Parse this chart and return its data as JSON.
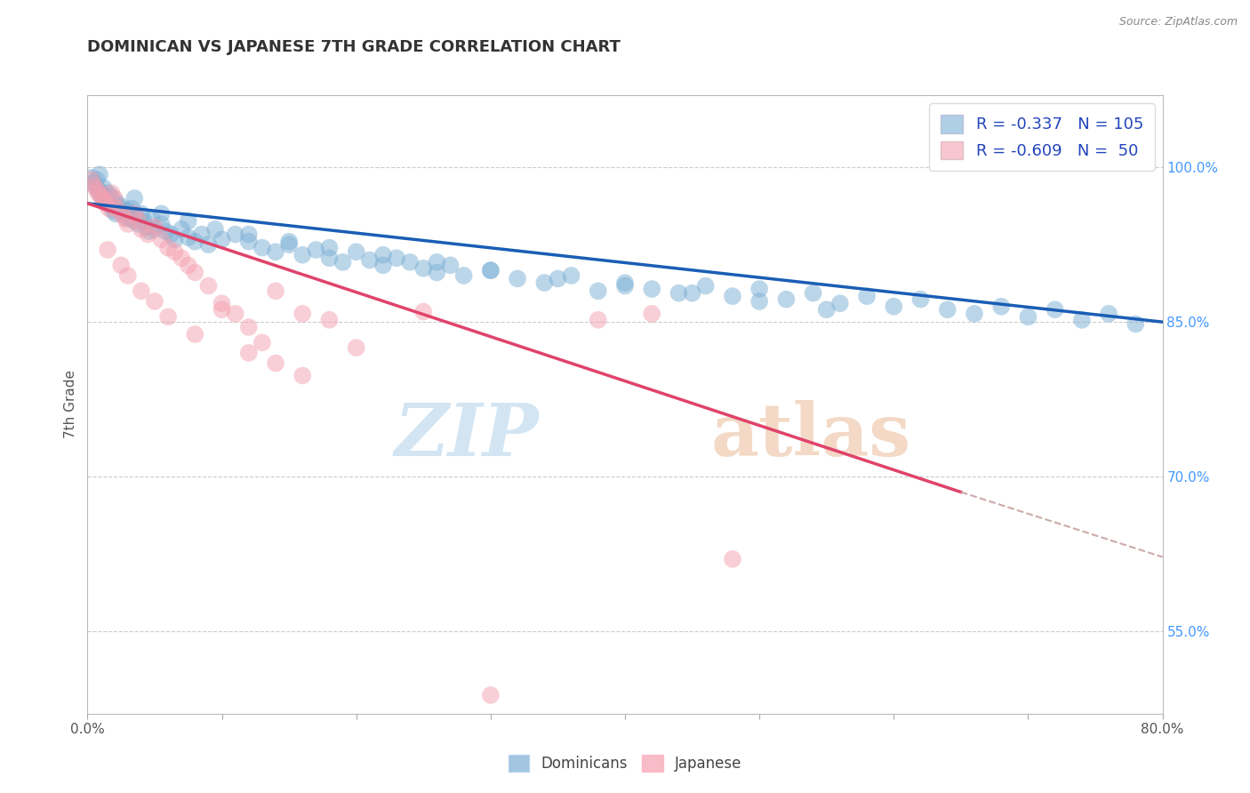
{
  "title": "DOMINICAN VS JAPANESE 7TH GRADE CORRELATION CHART",
  "source_text": "Source: ZipAtlas.com",
  "ylabel": "7th Grade",
  "xlim": [
    0.0,
    0.8
  ],
  "ylim": [
    0.47,
    1.07
  ],
  "xticks": [
    0.0,
    0.1,
    0.2,
    0.3,
    0.4,
    0.5,
    0.6,
    0.7,
    0.8
  ],
  "yticks_right": [
    0.55,
    0.7,
    0.85,
    1.0
  ],
  "ytick_right_labels": [
    "55.0%",
    "70.0%",
    "85.0%",
    "100.0%"
  ],
  "blue_color": "#7bafd4",
  "pink_color": "#f4a0b0",
  "blue_line_color": "#1a5db5",
  "pink_line_color": "#e0436a",
  "grid_color": "#cccccc",
  "blue_line_x": [
    0.0,
    0.8
  ],
  "blue_line_y": [
    0.965,
    0.85
  ],
  "pink_line_x": [
    0.0,
    0.65
  ],
  "pink_line_y": [
    0.965,
    0.685
  ],
  "dashed_line_x": [
    0.65,
    0.8
  ],
  "dashed_line_y": [
    0.685,
    0.622
  ],
  "blue_scatter_x": [
    0.003,
    0.005,
    0.006,
    0.007,
    0.008,
    0.009,
    0.01,
    0.011,
    0.012,
    0.013,
    0.014,
    0.015,
    0.016,
    0.017,
    0.018,
    0.019,
    0.02,
    0.021,
    0.022,
    0.023,
    0.025,
    0.026,
    0.027,
    0.028,
    0.03,
    0.032,
    0.033,
    0.034,
    0.035,
    0.036,
    0.038,
    0.04,
    0.042,
    0.044,
    0.046,
    0.048,
    0.05,
    0.055,
    0.058,
    0.062,
    0.065,
    0.07,
    0.075,
    0.08,
    0.085,
    0.09,
    0.1,
    0.11,
    0.12,
    0.13,
    0.14,
    0.15,
    0.16,
    0.17,
    0.18,
    0.19,
    0.2,
    0.21,
    0.22,
    0.23,
    0.24,
    0.25,
    0.26,
    0.27,
    0.28,
    0.3,
    0.32,
    0.34,
    0.36,
    0.38,
    0.4,
    0.42,
    0.44,
    0.46,
    0.48,
    0.5,
    0.52,
    0.54,
    0.56,
    0.58,
    0.6,
    0.62,
    0.64,
    0.66,
    0.68,
    0.7,
    0.72,
    0.74,
    0.76,
    0.78,
    0.035,
    0.055,
    0.075,
    0.095,
    0.12,
    0.15,
    0.18,
    0.22,
    0.26,
    0.3,
    0.35,
    0.4,
    0.45,
    0.5,
    0.55
  ],
  "blue_scatter_y": [
    0.99,
    0.985,
    0.982,
    0.988,
    0.978,
    0.993,
    0.975,
    0.97,
    0.98,
    0.972,
    0.968,
    0.975,
    0.965,
    0.972,
    0.962,
    0.958,
    0.968,
    0.955,
    0.965,
    0.96,
    0.962,
    0.958,
    0.955,
    0.952,
    0.958,
    0.95,
    0.96,
    0.955,
    0.948,
    0.952,
    0.945,
    0.955,
    0.948,
    0.942,
    0.938,
    0.95,
    0.94,
    0.945,
    0.938,
    0.935,
    0.93,
    0.94,
    0.932,
    0.928,
    0.935,
    0.925,
    0.93,
    0.935,
    0.928,
    0.922,
    0.918,
    0.925,
    0.915,
    0.92,
    0.912,
    0.908,
    0.918,
    0.91,
    0.905,
    0.912,
    0.908,
    0.902,
    0.898,
    0.905,
    0.895,
    0.9,
    0.892,
    0.888,
    0.895,
    0.88,
    0.888,
    0.882,
    0.878,
    0.885,
    0.875,
    0.882,
    0.872,
    0.878,
    0.868,
    0.875,
    0.865,
    0.872,
    0.862,
    0.858,
    0.865,
    0.855,
    0.862,
    0.852,
    0.858,
    0.848,
    0.97,
    0.955,
    0.948,
    0.94,
    0.935,
    0.928,
    0.922,
    0.915,
    0.908,
    0.9,
    0.892,
    0.885,
    0.878,
    0.87,
    0.862
  ],
  "pink_scatter_x": [
    0.003,
    0.005,
    0.007,
    0.008,
    0.01,
    0.012,
    0.014,
    0.016,
    0.018,
    0.02,
    0.022,
    0.025,
    0.028,
    0.03,
    0.035,
    0.038,
    0.04,
    0.045,
    0.05,
    0.055,
    0.06,
    0.065,
    0.07,
    0.075,
    0.08,
    0.09,
    0.1,
    0.11,
    0.12,
    0.13,
    0.015,
    0.025,
    0.03,
    0.04,
    0.05,
    0.06,
    0.08,
    0.1,
    0.12,
    0.14,
    0.16,
    0.18,
    0.2,
    0.14,
    0.16,
    0.38,
    0.42,
    0.48,
    0.25,
    0.3
  ],
  "pink_scatter_y": [
    0.988,
    0.982,
    0.978,
    0.975,
    0.972,
    0.968,
    0.965,
    0.96,
    0.975,
    0.97,
    0.96,
    0.955,
    0.95,
    0.945,
    0.955,
    0.948,
    0.94,
    0.935,
    0.942,
    0.93,
    0.922,
    0.918,
    0.912,
    0.905,
    0.898,
    0.885,
    0.868,
    0.858,
    0.845,
    0.83,
    0.92,
    0.905,
    0.895,
    0.88,
    0.87,
    0.855,
    0.838,
    0.862,
    0.82,
    0.81,
    0.798,
    0.852,
    0.825,
    0.88,
    0.858,
    0.852,
    0.858,
    0.62,
    0.86,
    0.488
  ]
}
